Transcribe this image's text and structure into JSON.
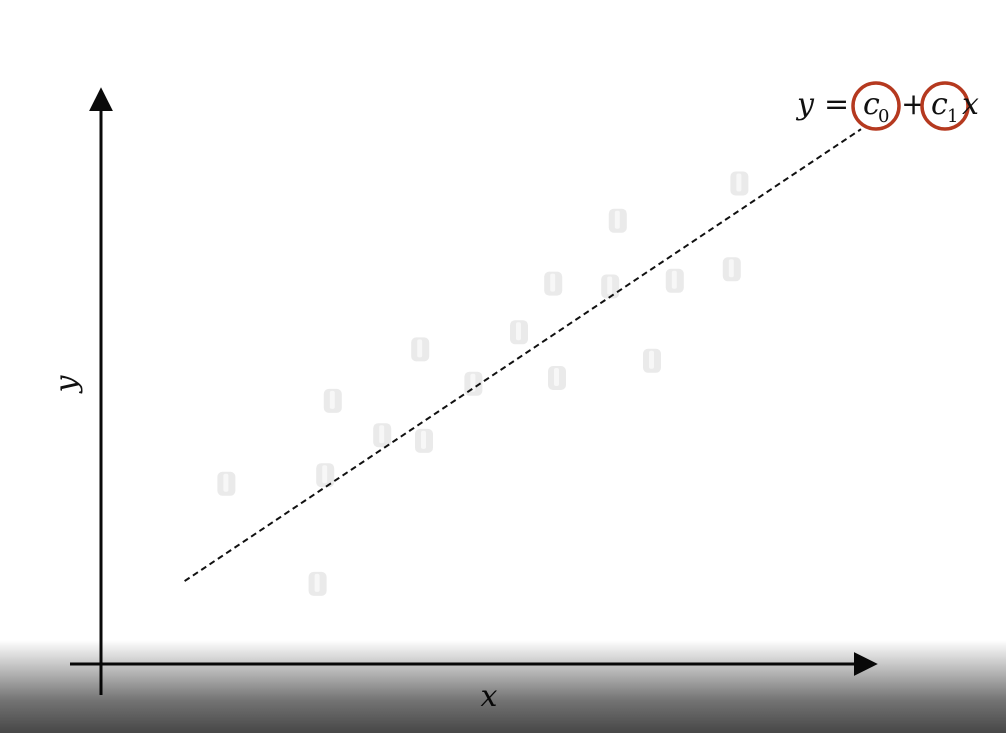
{
  "chart_data": {
    "type": "scatter",
    "title": "",
    "xlabel": "x",
    "ylabel": "y",
    "xlim": [
      0,
      10
    ],
    "ylim": [
      0,
      10
    ],
    "grid": false,
    "ticks": false,
    "points": [
      {
        "x": 1.65,
        "y": 3.15
      },
      {
        "x": 2.85,
        "y": 1.4
      },
      {
        "x": 2.95,
        "y": 3.3
      },
      {
        "x": 3.05,
        "y": 4.6
      },
      {
        "x": 3.7,
        "y": 4.0
      },
      {
        "x": 4.25,
        "y": 3.9
      },
      {
        "x": 4.2,
        "y": 5.5
      },
      {
        "x": 4.9,
        "y": 4.9
      },
      {
        "x": 5.5,
        "y": 5.8
      },
      {
        "x": 6.0,
        "y": 5.0
      },
      {
        "x": 5.95,
        "y": 6.65
      },
      {
        "x": 6.7,
        "y": 6.6
      },
      {
        "x": 6.8,
        "y": 7.75
      },
      {
        "x": 7.25,
        "y": 5.3
      },
      {
        "x": 7.55,
        "y": 6.7
      },
      {
        "x": 8.3,
        "y": 6.9
      },
      {
        "x": 8.4,
        "y": 8.4
      }
    ],
    "fit_line": {
      "style": "dashed",
      "x": [
        1.1,
        10.0
      ],
      "y": [
        1.45,
        9.35
      ]
    },
    "equation": {
      "lhs": "y",
      "equals": "=",
      "c0": "c",
      "c0_sub": "0",
      "plus": "+",
      "c1": "c",
      "c1_sub": "1",
      "var": "x",
      "highlight_color": "#b5391f"
    },
    "colors": {
      "axis": "#0a0a0a",
      "line": "#111111",
      "points": "#e6e6e6"
    }
  }
}
